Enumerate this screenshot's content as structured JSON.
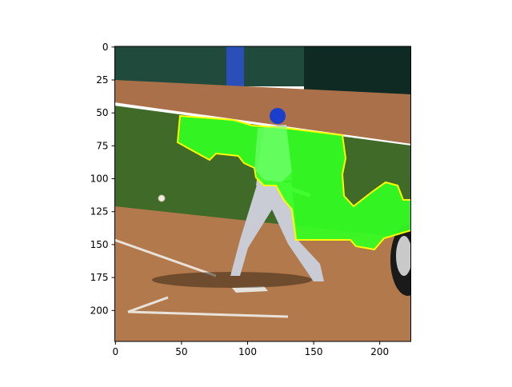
{
  "figure": {
    "x_ticks": [
      "0",
      "50",
      "100",
      "150",
      "200"
    ],
    "y_ticks": [
      "0",
      "25",
      "50",
      "75",
      "100",
      "125",
      "150",
      "175",
      "200"
    ],
    "image_size": [
      224,
      224
    ]
  },
  "image_content": {
    "scene": "batter-swinging-at-baseball-on-field",
    "overlay_color": "#33ff22",
    "overlay_outline_color": "#ffff00"
  },
  "colors": {
    "outfield_grass": "#3f6a28",
    "infield_dirt": "#b27a4c",
    "background_wall": "#1f4a3c",
    "helmet": "#1a3fcc",
    "uniform": "#c9ccd4"
  }
}
